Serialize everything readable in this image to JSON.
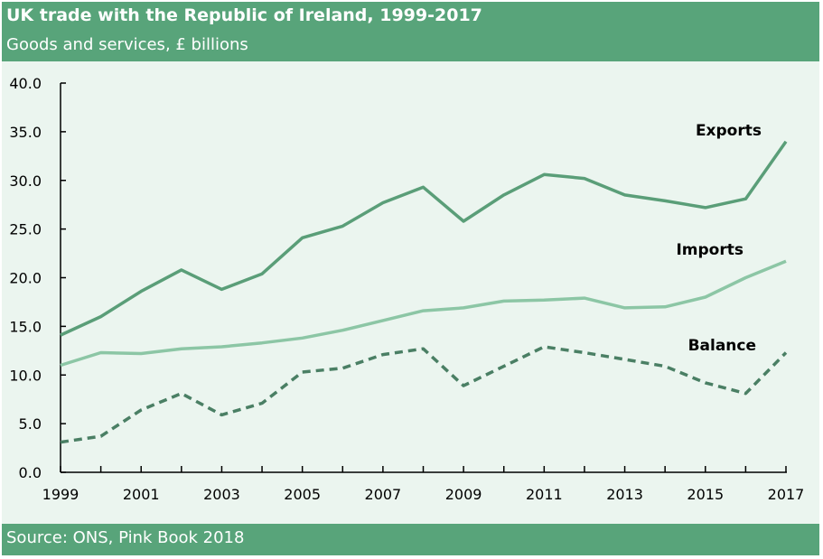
{
  "header": {
    "title": "UK trade with the Republic of Ireland, 1999-2017",
    "subtitle": "Goods and services, £ billions"
  },
  "footer": {
    "source": "Source: ONS, Pink Book 2018"
  },
  "chart_data": {
    "type": "line",
    "title": "UK trade with the Republic of Ireland, 1999-2017",
    "subtitle": "Goods and services, £ billions",
    "x": [
      1999,
      2000,
      2001,
      2002,
      2003,
      2004,
      2005,
      2006,
      2007,
      2008,
      2009,
      2010,
      2011,
      2012,
      2013,
      2014,
      2015,
      2016,
      2017
    ],
    "x_tick_labels": [
      "1999",
      "2001",
      "2003",
      "2005",
      "2007",
      "2009",
      "2011",
      "2013",
      "2015",
      "2017"
    ],
    "y_tick_labels": [
      "0.0",
      "5.0",
      "10.0",
      "15.0",
      "20.0",
      "25.0",
      "30.0",
      "35.0",
      "40.0"
    ],
    "ylim": [
      0,
      40
    ],
    "grid": false,
    "legend": "inline labels at right end of lines",
    "series": [
      {
        "name": "Exports",
        "color": "#5a9e78",
        "style": "solid",
        "values": [
          14.1,
          16.0,
          18.6,
          20.8,
          18.8,
          20.4,
          24.1,
          25.3,
          27.7,
          29.3,
          25.8,
          28.5,
          30.6,
          30.2,
          28.5,
          27.9,
          27.2,
          28.1,
          34.0
        ]
      },
      {
        "name": "Imports",
        "color": "#8cc6a5",
        "style": "solid",
        "values": [
          11.0,
          12.3,
          12.2,
          12.7,
          12.9,
          13.3,
          13.8,
          14.6,
          15.6,
          16.6,
          16.9,
          17.6,
          17.7,
          17.9,
          16.9,
          17.0,
          18.0,
          20.0,
          21.7
        ]
      },
      {
        "name": "Balance",
        "color": "#4a7f64",
        "style": "dashed",
        "values": [
          3.1,
          3.7,
          6.4,
          8.1,
          5.9,
          7.1,
          10.3,
          10.7,
          12.1,
          12.7,
          8.9,
          10.9,
          12.9,
          12.3,
          11.6,
          10.9,
          9.2,
          8.1,
          12.3
        ]
      }
    ]
  }
}
